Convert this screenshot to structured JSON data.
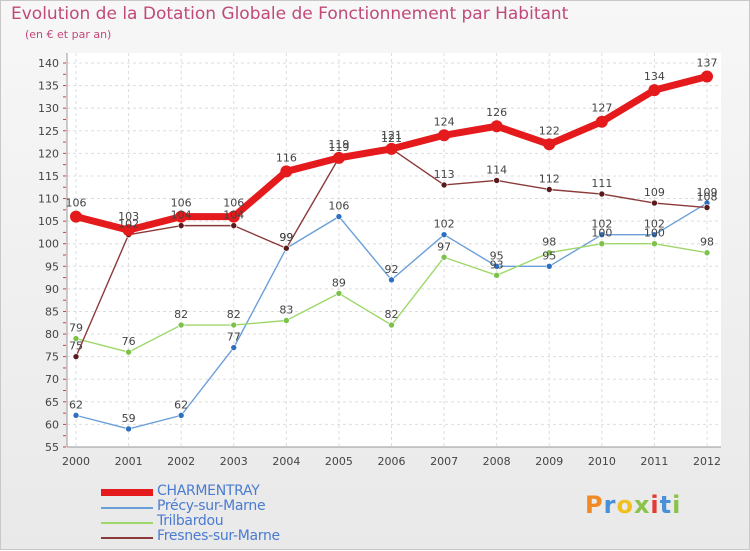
{
  "header": {
    "title": "Evolution de la Dotation Globale de Fonctionnement par Habitant",
    "subtitle": "(en € et par an)"
  },
  "logo": {
    "text": "Proxiti"
  },
  "colors": {
    "title": "#c0497a",
    "legend_text": "#4a7bd0",
    "axis_text": "#444444",
    "grid": "#dddddd"
  },
  "chart_data": {
    "type": "line",
    "title": "Evolution de la Dotation Globale de Fonctionnement par Habitant",
    "subtitle": "(en € et par an)",
    "xlabel": "",
    "ylabel": "",
    "categories": [
      "2000",
      "2001",
      "2002",
      "2003",
      "2004",
      "2005",
      "2006",
      "2007",
      "2008",
      "2009",
      "2010",
      "2011",
      "2012"
    ],
    "yticks": [
      55,
      60,
      65,
      70,
      75,
      80,
      85,
      90,
      95,
      100,
      105,
      110,
      115,
      120,
      125,
      130,
      135,
      140
    ],
    "ylim": [
      55,
      140
    ],
    "grid": true,
    "legend_position": "bottom-left",
    "series": [
      {
        "name": "CHARMENTRAY",
        "color": "#e41a1c",
        "marker": "#e41a1c",
        "width": 7,
        "values": [
          106,
          103,
          106,
          106,
          116,
          119,
          121,
          124,
          126,
          122,
          127,
          134,
          137
        ]
      },
      {
        "name": "Précy-sur-Marne",
        "color": "#6a9fd8",
        "marker": "#2f6fc0",
        "width": 1.4,
        "values": [
          62,
          59,
          62,
          77,
          99,
          106,
          92,
          102,
          95,
          95,
          102,
          102,
          109
        ]
      },
      {
        "name": "Trilbardou",
        "color": "#9fd86a",
        "marker": "#7cc24a",
        "width": 1.4,
        "values": [
          79,
          76,
          82,
          82,
          83,
          89,
          82,
          97,
          93,
          98,
          100,
          100,
          98
        ]
      },
      {
        "name": "Fresnes-sur-Marne",
        "color": "#8b3a3a",
        "marker": "#5a1a1a",
        "width": 1.4,
        "values": [
          75,
          102,
          104,
          104,
          99,
          119,
          121,
          113,
          114,
          112,
          111,
          109,
          108
        ]
      }
    ]
  }
}
